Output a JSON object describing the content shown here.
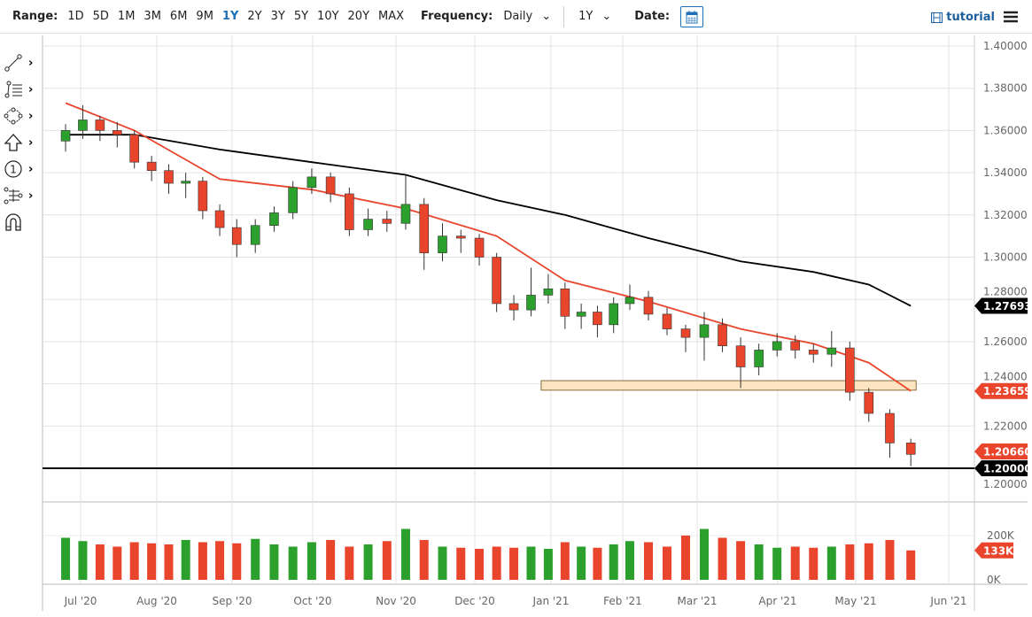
{
  "toolbar": {
    "range_label": "Range:",
    "ranges": [
      "1D",
      "5D",
      "1M",
      "3M",
      "6M",
      "9M",
      "1Y",
      "2Y",
      "3Y",
      "5Y",
      "10Y",
      "20Y",
      "MAX"
    ],
    "active_range": "1Y",
    "frequency_label": "Frequency:",
    "frequency_value": "Daily",
    "period_value": "1Y",
    "date_label": "Date:",
    "tutorial_label": "tutorial",
    "accent": "#1d6fb8"
  },
  "tools": [
    "line-tool",
    "fib-tool",
    "shape-tool",
    "arrow-tool",
    "annotation-tool",
    "measure-tool",
    "magnet-tool"
  ],
  "chart_data": {
    "type": "candlestick",
    "y_ticks": [
      "1.20000",
      "1.22000",
      "1.24000",
      "1.26000",
      "1.28000",
      "1.30000",
      "1.32000",
      "1.34000",
      "1.36000",
      "1.38000",
      "1.40000"
    ],
    "ylim": [
      1.2,
      1.4
    ],
    "x_ticks": [
      "Jul '20",
      "Aug '20",
      "Sep '20",
      "Oct '20",
      "Nov '20",
      "Dec '20",
      "Jan '21",
      "Feb '21",
      "Mar '21",
      "Apr '21",
      "May '21",
      "Jun '21"
    ],
    "grid": true,
    "colors": {
      "up": "#2ca02c",
      "down": "#e8452c",
      "ma_fast": "#e8452c",
      "ma_slow": "#000000",
      "zone": "#fde5c4"
    },
    "candles": [
      [
        "2020-06-22",
        1.355,
        1.363,
        1.35,
        1.36
      ],
      [
        "2020-06-29",
        1.36,
        1.372,
        1.356,
        1.365
      ],
      [
        "2020-07-06",
        1.365,
        1.367,
        1.355,
        1.36
      ],
      [
        "2020-07-13",
        1.36,
        1.364,
        1.352,
        1.358
      ],
      [
        "2020-07-20",
        1.358,
        1.36,
        1.342,
        1.345
      ],
      [
        "2020-07-27",
        1.345,
        1.348,
        1.336,
        1.341
      ],
      [
        "2020-08-03",
        1.341,
        1.344,
        1.33,
        1.335
      ],
      [
        "2020-08-10",
        1.335,
        1.34,
        1.328,
        1.336
      ],
      [
        "2020-08-17",
        1.336,
        1.338,
        1.318,
        1.322
      ],
      [
        "2020-08-24",
        1.322,
        1.325,
        1.31,
        1.314
      ],
      [
        "2020-08-31",
        1.314,
        1.318,
        1.3,
        1.306
      ],
      [
        "2020-09-07",
        1.306,
        1.318,
        1.302,
        1.315
      ],
      [
        "2020-09-14",
        1.315,
        1.324,
        1.312,
        1.321
      ],
      [
        "2020-09-21",
        1.321,
        1.336,
        1.318,
        1.333
      ],
      [
        "2020-09-28",
        1.333,
        1.342,
        1.33,
        1.338
      ],
      [
        "2020-10-05",
        1.338,
        1.34,
        1.326,
        1.33
      ],
      [
        "2020-10-12",
        1.33,
        1.333,
        1.31,
        1.313
      ],
      [
        "2020-10-19",
        1.313,
        1.323,
        1.31,
        1.318
      ],
      [
        "2020-10-26",
        1.318,
        1.322,
        1.312,
        1.316
      ],
      [
        "2020-11-02",
        1.316,
        1.339,
        1.313,
        1.325
      ],
      [
        "2020-11-09",
        1.325,
        1.328,
        1.294,
        1.302
      ],
      [
        "2020-11-16",
        1.302,
        1.316,
        1.298,
        1.31
      ],
      [
        "2020-11-23",
        1.31,
        1.313,
        1.302,
        1.309
      ],
      [
        "2020-11-30",
        1.309,
        1.311,
        1.296,
        1.3
      ],
      [
        "2020-12-07",
        1.3,
        1.302,
        1.274,
        1.278
      ],
      [
        "2020-12-14",
        1.278,
        1.282,
        1.27,
        1.275
      ],
      [
        "2020-12-21",
        1.275,
        1.295,
        1.272,
        1.282
      ],
      [
        "2020-12-28",
        1.282,
        1.292,
        1.278,
        1.285
      ],
      [
        "2021-01-04",
        1.285,
        1.288,
        1.266,
        1.272
      ],
      [
        "2021-01-11",
        1.272,
        1.278,
        1.266,
        1.274
      ],
      [
        "2021-01-18",
        1.274,
        1.277,
        1.262,
        1.268
      ],
      [
        "2021-01-25",
        1.268,
        1.281,
        1.264,
        1.278
      ],
      [
        "2021-02-01",
        1.278,
        1.287,
        1.275,
        1.281
      ],
      [
        "2021-02-08",
        1.281,
        1.284,
        1.27,
        1.273
      ],
      [
        "2021-02-15",
        1.273,
        1.276,
        1.263,
        1.266
      ],
      [
        "2021-02-22",
        1.266,
        1.268,
        1.255,
        1.262
      ],
      [
        "2021-03-01",
        1.262,
        1.274,
        1.251,
        1.268
      ],
      [
        "2021-03-08",
        1.268,
        1.271,
        1.255,
        1.258
      ],
      [
        "2021-03-15",
        1.258,
        1.262,
        1.238,
        1.248
      ],
      [
        "2021-03-22",
        1.248,
        1.259,
        1.244,
        1.256
      ],
      [
        "2021-03-29",
        1.256,
        1.264,
        1.253,
        1.26
      ],
      [
        "2021-04-05",
        1.26,
        1.263,
        1.252,
        1.256
      ],
      [
        "2021-04-12",
        1.256,
        1.259,
        1.25,
        1.254
      ],
      [
        "2021-04-19",
        1.254,
        1.265,
        1.248,
        1.257
      ],
      [
        "2021-04-26",
        1.257,
        1.26,
        1.232,
        1.236
      ],
      [
        "2021-05-03",
        1.236,
        1.238,
        1.222,
        1.226
      ],
      [
        "2021-05-10",
        1.226,
        1.228,
        1.205,
        1.212
      ],
      [
        "2021-05-17",
        1.212,
        1.214,
        1.201,
        1.2066
      ]
    ],
    "ma_fast": [
      [
        "2020-06-22",
        1.373
      ],
      [
        "2020-07-20",
        1.36
      ],
      [
        "2020-08-24",
        1.337
      ],
      [
        "2020-09-28",
        1.332
      ],
      [
        "2020-11-02",
        1.323
      ],
      [
        "2020-12-07",
        1.31
      ],
      [
        "2021-01-04",
        1.289
      ],
      [
        "2021-02-08",
        1.279
      ],
      [
        "2021-03-15",
        1.266
      ],
      [
        "2021-04-12",
        1.259
      ],
      [
        "2021-05-03",
        1.25
      ],
      [
        "2021-05-17",
        1.23659
      ]
    ],
    "ma_slow": [
      [
        "2020-06-22",
        1.358
      ],
      [
        "2020-07-20",
        1.358
      ],
      [
        "2020-08-24",
        1.351
      ],
      [
        "2020-09-28",
        1.345
      ],
      [
        "2020-11-02",
        1.339
      ],
      [
        "2020-12-07",
        1.327
      ],
      [
        "2021-01-04",
        1.32
      ],
      [
        "2021-02-08",
        1.309
      ],
      [
        "2021-03-15",
        1.298
      ],
      [
        "2021-04-12",
        1.293
      ],
      [
        "2021-05-03",
        1.287
      ],
      [
        "2021-05-17",
        1.27693
      ]
    ],
    "zone": {
      "from": "2020-12-28",
      "to": "2021-05-17",
      "low": 1.237,
      "high": 1.2415
    },
    "hline": 1.2,
    "price_tags": [
      {
        "value": 1.27693,
        "text": "1.27693",
        "color": "#000000"
      },
      {
        "value": 1.23659,
        "text": "1.23659",
        "color": "#e8452c"
      },
      {
        "value": 1.2066,
        "text": "1.20660",
        "color": "#e8452c"
      },
      {
        "value": 1.2,
        "text": "1.20000",
        "color": "#000000"
      }
    ],
    "volume": {
      "unit": "K",
      "ticks": [
        "200K",
        "0K"
      ],
      "last_tag": "133K",
      "values": [
        190,
        175,
        160,
        150,
        170,
        165,
        160,
        180,
        170,
        175,
        165,
        185,
        160,
        150,
        170,
        180,
        150,
        160,
        175,
        230,
        180,
        150,
        145,
        140,
        150,
        145,
        150,
        140,
        170,
        150,
        145,
        160,
        175,
        170,
        150,
        200,
        230,
        190,
        175,
        160,
        145,
        150,
        145,
        150,
        160,
        165,
        180,
        133
      ]
    }
  }
}
